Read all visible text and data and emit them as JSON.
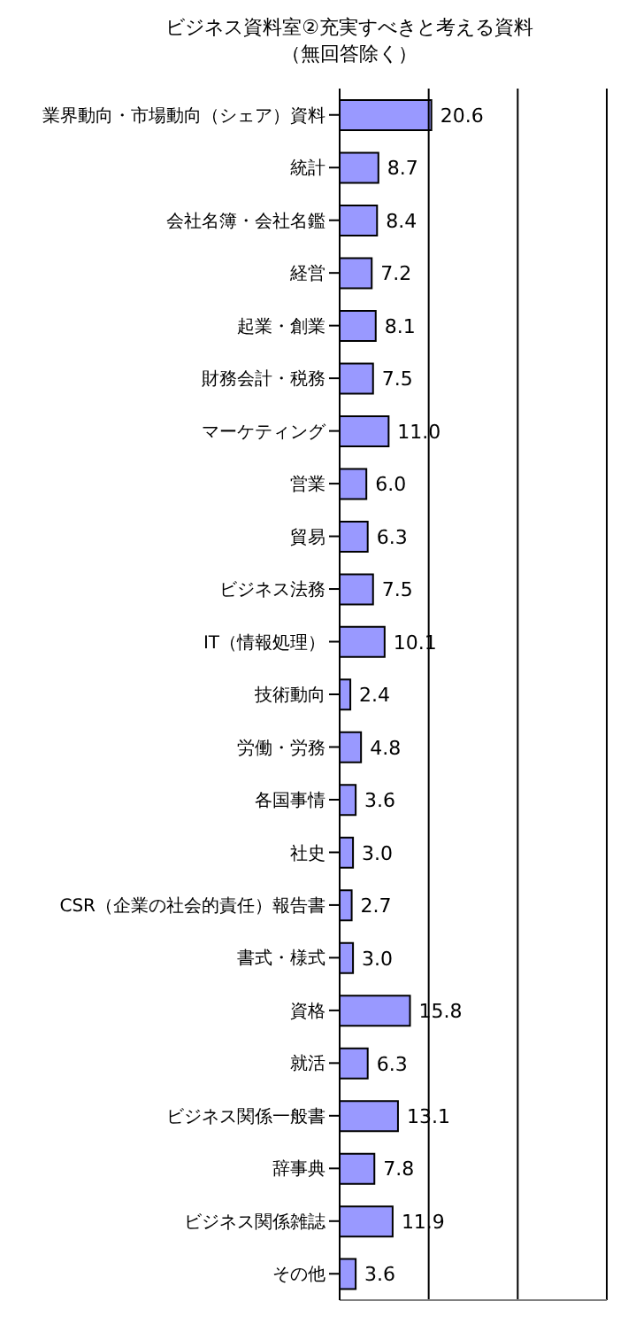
{
  "chart_data": {
    "type": "bar",
    "orientation": "horizontal",
    "title": "ビジネス資料室②充実すべきと考える資料",
    "subtitle": "（無回答除く）",
    "categories": [
      "業界動向・市場動向（シェア）資料",
      "統計",
      "会社名簿・会社名鑑",
      "経営",
      "起業・創業",
      "財務会計・税務",
      "マーケティング",
      "営業",
      "貿易",
      "ビジネス法務",
      "IT（情報処理）",
      "技術動向",
      "労働・労務",
      "各国事情",
      "社史",
      "CSR（企業の社会的責任）報告書",
      "書式・様式",
      "資格",
      "就活",
      "ビジネス関係一般書",
      "辞事典",
      "ビジネス関係雑誌",
      "その他"
    ],
    "values": [
      20.6,
      8.7,
      8.4,
      7.2,
      8.1,
      7.5,
      11.0,
      6.0,
      6.3,
      7.5,
      10.1,
      2.4,
      4.8,
      3.6,
      3.0,
      2.7,
      3.0,
      15.8,
      6.3,
      13.1,
      7.8,
      11.9,
      3.6
    ],
    "value_labels": [
      "20.6",
      "8.7",
      "8.4",
      "7.2",
      "8.1",
      "7.5",
      "11.0",
      "6.0",
      "6.3",
      "7.5",
      "10.1",
      "2.4",
      "4.8",
      "3.6",
      "3.0",
      "2.7",
      "3.0",
      "15.8",
      "6.3",
      "13.1",
      "7.8",
      "11.9",
      "3.6"
    ],
    "color": "#9999ff",
    "xlim": [
      0,
      60
    ],
    "xticks": [
      {
        "value": 20,
        "label": null
      },
      {
        "value": 40,
        "label": null
      },
      {
        "value": 60,
        "label": null
      }
    ],
    "tick_labels": "y",
    "grid": "x",
    "legend": false
  }
}
